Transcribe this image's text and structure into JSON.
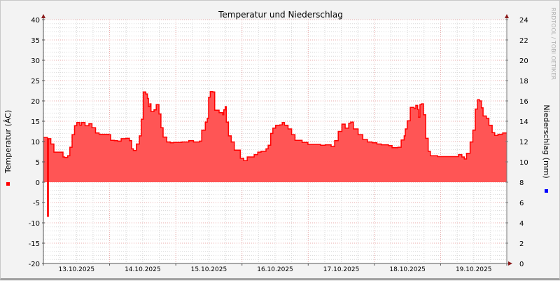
{
  "chart_data": {
    "type": "area",
    "title": "Temperatur und Niederschlag",
    "ylabel": "Temperatur (ÂC)",
    "y2label": "Niederschlag (mm)",
    "watermark": "RRDTOOL / TOBI OETIKER",
    "ylim": [
      -20,
      40
    ],
    "yticks": [
      40,
      35,
      30,
      25,
      20,
      15,
      10,
      5,
      0,
      -5,
      -10,
      -15,
      -20
    ],
    "y2lim": [
      0,
      24
    ],
    "y2ticks": [
      24,
      22,
      20,
      18,
      16,
      14,
      12,
      10,
      8,
      6,
      4,
      2,
      0
    ],
    "xlim": [
      "2025-10-13T00:00",
      "2025-10-20T00:00"
    ],
    "xtick_labels": [
      "13.10.2025",
      "14.10.2025",
      "15.10.2025",
      "16.10.2025",
      "17.10.2025",
      "18.10.2025",
      "19.10.2025"
    ],
    "grid": true,
    "colors": {
      "temperature": "#ff0000",
      "temperature_fill": "#ff5555",
      "precipitation": "#0000ff"
    },
    "series": [
      {
        "key": "temperature",
        "points": [
          [
            "2025-10-13T00:00",
            11.0
          ],
          [
            "2025-10-13T01:24",
            11.0
          ],
          [
            "2025-10-13T01:30",
            -8.4
          ],
          [
            "2025-10-13T01:48",
            10.7
          ],
          [
            "2025-10-13T02:42",
            9.4
          ],
          [
            "2025-10-13T03:48",
            7.4
          ],
          [
            "2025-10-13T05:24",
            7.4
          ],
          [
            "2025-10-13T07:06",
            6.2
          ],
          [
            "2025-10-13T07:42",
            6.1
          ],
          [
            "2025-10-13T08:48",
            6.5
          ],
          [
            "2025-10-13T09:36",
            8.6
          ],
          [
            "2025-10-13T10:24",
            11.7
          ],
          [
            "2025-10-13T11:18",
            13.9
          ],
          [
            "2025-10-13T12:06",
            14.7
          ],
          [
            "2025-10-13T13:12",
            14.0
          ],
          [
            "2025-10-13T13:48",
            14.7
          ],
          [
            "2025-10-13T15:06",
            13.9
          ],
          [
            "2025-10-13T16:30",
            14.4
          ],
          [
            "2025-10-13T17:36",
            13.4
          ],
          [
            "2025-10-13T18:54",
            12.1
          ],
          [
            "2025-10-13T20:12",
            11.8
          ],
          [
            "2025-10-13T23:36",
            11.7
          ],
          [
            "2025-10-14T00:24",
            10.3
          ],
          [
            "2025-10-14T01:42",
            10.2
          ],
          [
            "2025-10-14T02:54",
            10.1
          ],
          [
            "2025-10-14T04:12",
            10.7
          ],
          [
            "2025-10-14T05:54",
            10.8
          ],
          [
            "2025-10-14T07:12",
            10.2
          ],
          [
            "2025-10-14T08:00",
            8.2
          ],
          [
            "2025-10-14T08:36",
            7.8
          ],
          [
            "2025-10-14T09:42",
            9.4
          ],
          [
            "2025-10-14T10:48",
            11.4
          ],
          [
            "2025-10-14T11:30",
            15.5
          ],
          [
            "2025-10-14T12:12",
            22.2
          ],
          [
            "2025-10-14T13:06",
            21.7
          ],
          [
            "2025-10-14T13:42",
            20.6
          ],
          [
            "2025-10-14T14:06",
            18.6
          ],
          [
            "2025-10-14T14:36",
            19.3
          ],
          [
            "2025-10-14T15:00",
            17.4
          ],
          [
            "2025-10-14T16:06",
            17.8
          ],
          [
            "2025-10-14T16:54",
            19.1
          ],
          [
            "2025-10-14T17:54",
            16.8
          ],
          [
            "2025-10-14T18:36",
            13.4
          ],
          [
            "2025-10-14T19:24",
            11.1
          ],
          [
            "2025-10-14T20:42",
            9.9
          ],
          [
            "2025-10-14T22:00",
            9.7
          ],
          [
            "2025-10-14T23:12",
            9.8
          ],
          [
            "2025-10-15T02:12",
            9.9
          ],
          [
            "2025-10-15T04:42",
            10.2
          ],
          [
            "2025-10-15T06:24",
            9.9
          ],
          [
            "2025-10-15T08:36",
            10.1
          ],
          [
            "2025-10-15T09:24",
            12.8
          ],
          [
            "2025-10-15T10:42",
            14.8
          ],
          [
            "2025-10-15T11:24",
            15.7
          ],
          [
            "2025-10-15T11:54",
            20.9
          ],
          [
            "2025-10-15T12:30",
            22.3
          ],
          [
            "2025-10-15T13:24",
            22.2
          ],
          [
            "2025-10-15T14:06",
            17.7
          ],
          [
            "2025-10-15T15:42",
            17.1
          ],
          [
            "2025-10-15T17:00",
            16.6
          ],
          [
            "2025-10-15T17:24",
            17.8
          ],
          [
            "2025-10-15T17:54",
            18.6
          ],
          [
            "2025-10-15T18:18",
            14.8
          ],
          [
            "2025-10-15T19:06",
            11.4
          ],
          [
            "2025-10-15T20:06",
            9.9
          ],
          [
            "2025-10-15T21:12",
            7.9
          ],
          [
            "2025-10-15T23:24",
            5.9
          ],
          [
            "2025-10-16T00:36",
            5.3
          ],
          [
            "2025-10-16T01:54",
            6.2
          ],
          [
            "2025-10-16T03:36",
            6.2
          ],
          [
            "2025-10-16T04:24",
            6.8
          ],
          [
            "2025-10-16T05:42",
            7.4
          ],
          [
            "2025-10-16T06:54",
            7.6
          ],
          [
            "2025-10-16T08:42",
            8.2
          ],
          [
            "2025-10-16T09:30",
            9.1
          ],
          [
            "2025-10-16T10:24",
            12.0
          ],
          [
            "2025-10-16T11:12",
            13.3
          ],
          [
            "2025-10-16T12:12",
            14.0
          ],
          [
            "2025-10-16T13:42",
            14.1
          ],
          [
            "2025-10-16T14:36",
            14.7
          ],
          [
            "2025-10-16T15:24",
            14.0
          ],
          [
            "2025-10-16T16:42",
            13.1
          ],
          [
            "2025-10-16T18:00",
            11.7
          ],
          [
            "2025-10-16T19:12",
            10.3
          ],
          [
            "2025-10-16T21:48",
            9.8
          ],
          [
            "2025-10-16T23:54",
            9.3
          ],
          [
            "2025-10-17T02:54",
            9.3
          ],
          [
            "2025-10-17T04:30",
            9.1
          ],
          [
            "2025-10-17T06:12",
            9.2
          ],
          [
            "2025-10-17T08:18",
            8.8
          ],
          [
            "2025-10-17T09:36",
            10.2
          ],
          [
            "2025-10-17T10:54",
            12.5
          ],
          [
            "2025-10-17T12:12",
            14.3
          ],
          [
            "2025-10-17T13:24",
            13.3
          ],
          [
            "2025-10-17T14:42",
            14.5
          ],
          [
            "2025-10-17T15:24",
            14.8
          ],
          [
            "2025-10-17T16:24",
            13.1
          ],
          [
            "2025-10-17T18:06",
            11.7
          ],
          [
            "2025-10-17T19:48",
            10.5
          ],
          [
            "2025-10-17T21:30",
            9.9
          ],
          [
            "2025-10-17T23:12",
            9.7
          ],
          [
            "2025-10-18T00:54",
            9.4
          ],
          [
            "2025-10-18T02:30",
            9.2
          ],
          [
            "2025-10-18T05:06",
            9.0
          ],
          [
            "2025-10-18T06:24",
            8.5
          ],
          [
            "2025-10-18T08:30",
            8.6
          ],
          [
            "2025-10-18T09:42",
            10.4
          ],
          [
            "2025-10-18T10:48",
            11.4
          ],
          [
            "2025-10-18T11:12",
            13.1
          ],
          [
            "2025-10-18T11:54",
            15.1
          ],
          [
            "2025-10-18T13:00",
            18.4
          ],
          [
            "2025-10-18T14:24",
            18.1
          ],
          [
            "2025-10-18T15:00",
            18.9
          ],
          [
            "2025-10-18T15:42",
            17.9
          ],
          [
            "2025-10-18T16:00",
            16.0
          ],
          [
            "2025-10-18T16:30",
            19.1
          ],
          [
            "2025-10-18T17:06",
            19.3
          ],
          [
            "2025-10-18T17:48",
            16.6
          ],
          [
            "2025-10-18T18:36",
            10.8
          ],
          [
            "2025-10-18T19:30",
            7.6
          ],
          [
            "2025-10-18T20:18",
            6.5
          ],
          [
            "2025-10-18T22:54",
            6.3
          ],
          [
            "2025-10-19T03:06",
            6.3
          ],
          [
            "2025-10-19T06:30",
            6.8
          ],
          [
            "2025-10-19T07:42",
            6.2
          ],
          [
            "2025-10-19T08:36",
            5.7
          ],
          [
            "2025-10-19T09:24",
            7.1
          ],
          [
            "2025-10-19T10:42",
            9.9
          ],
          [
            "2025-10-19T11:42",
            12.8
          ],
          [
            "2025-10-19T12:36",
            18.0
          ],
          [
            "2025-10-19T13:24",
            20.3
          ],
          [
            "2025-10-19T14:06",
            20.0
          ],
          [
            "2025-10-19T14:48",
            18.3
          ],
          [
            "2025-10-19T15:24",
            16.3
          ],
          [
            "2025-10-19T16:36",
            15.7
          ],
          [
            "2025-10-19T17:30",
            14.0
          ],
          [
            "2025-10-19T18:42",
            12.2
          ],
          [
            "2025-10-19T19:36",
            11.5
          ],
          [
            "2025-10-19T20:48",
            11.8
          ],
          [
            "2025-10-19T22:30",
            12.1
          ],
          [
            "2025-10-19T23:48",
            12.1
          ]
        ]
      },
      {
        "key": "precipitation",
        "points": []
      }
    ]
  }
}
